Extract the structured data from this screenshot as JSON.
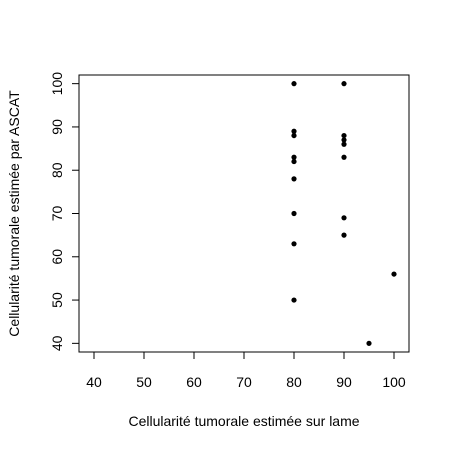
{
  "chart_data": {
    "type": "scatter",
    "title": "",
    "xlabel": "Cellularité tumorale estimée sur lame",
    "ylabel": "Cellularité tumorale estimée par ASCAT",
    "xlim": [
      37,
      103
    ],
    "ylim": [
      38,
      102
    ],
    "xticks": [
      40,
      50,
      60,
      70,
      80,
      90,
      100
    ],
    "yticks": [
      40,
      50,
      60,
      70,
      80,
      90,
      100
    ],
    "grid": false,
    "legend": "none",
    "point_color": "#000000",
    "points": [
      {
        "x": 80,
        "y": 100
      },
      {
        "x": 80,
        "y": 89
      },
      {
        "x": 80,
        "y": 88
      },
      {
        "x": 80,
        "y": 83
      },
      {
        "x": 80,
        "y": 82
      },
      {
        "x": 80,
        "y": 78
      },
      {
        "x": 80,
        "y": 70
      },
      {
        "x": 80,
        "y": 63
      },
      {
        "x": 80,
        "y": 50
      },
      {
        "x": 90,
        "y": 100
      },
      {
        "x": 90,
        "y": 88
      },
      {
        "x": 90,
        "y": 87
      },
      {
        "x": 90,
        "y": 86
      },
      {
        "x": 90,
        "y": 83
      },
      {
        "x": 90,
        "y": 69
      },
      {
        "x": 90,
        "y": 65
      },
      {
        "x": 95,
        "y": 40
      },
      {
        "x": 100,
        "y": 56
      }
    ]
  }
}
